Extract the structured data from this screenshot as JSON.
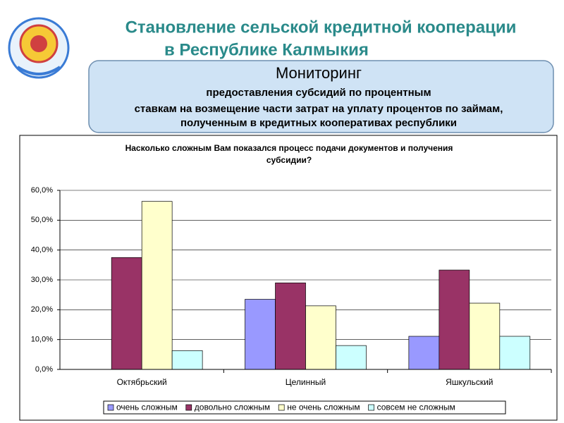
{
  "header": {
    "title": [
      "Становление  сельской кредитной кооперации",
      "в Республике Калмыкия"
    ]
  },
  "box": {
    "heading": "Мониторинг",
    "lines": [
      "предоставления субсидий по процентным",
      "ставкам на возмещение части затрат на уплату процентов по займам,",
      "полученным в кредитных кооперативах республики"
    ]
  },
  "chart_data": {
    "type": "bar",
    "title": [
      "Насколько сложным Вам показался процесс подачи документов и получения",
      "субсидии?"
    ],
    "categories": [
      "Октябрьский",
      "Целинный",
      "Яшкульский"
    ],
    "series": [
      {
        "name": "очень сложным",
        "color": "#9999ff",
        "values": [
          0,
          23.5,
          11.1
        ]
      },
      {
        "name": "довольно сложным",
        "color": "#993366",
        "values": [
          37.5,
          29,
          33.3
        ]
      },
      {
        "name": "не очень сложным",
        "color": "#ffffcc",
        "values": [
          56.3,
          21.3,
          22.2
        ]
      },
      {
        "name": "совсем не сложным",
        "color": "#ccffff",
        "values": [
          6.3,
          8,
          11.1
        ]
      }
    ],
    "ylim": [
      0,
      60
    ],
    "yticks": [
      {
        "value": 0,
        "label": "0,0%"
      },
      {
        "value": 10,
        "label": "10,0%"
      },
      {
        "value": 20,
        "label": "20,0%"
      },
      {
        "value": 30,
        "label": "30,0%"
      },
      {
        "value": 40,
        "label": "40,0%"
      },
      {
        "value": 50,
        "label": "50,0%"
      },
      {
        "value": 60,
        "label": "60,0%"
      }
    ],
    "grid": true,
    "legend": "bottom"
  }
}
